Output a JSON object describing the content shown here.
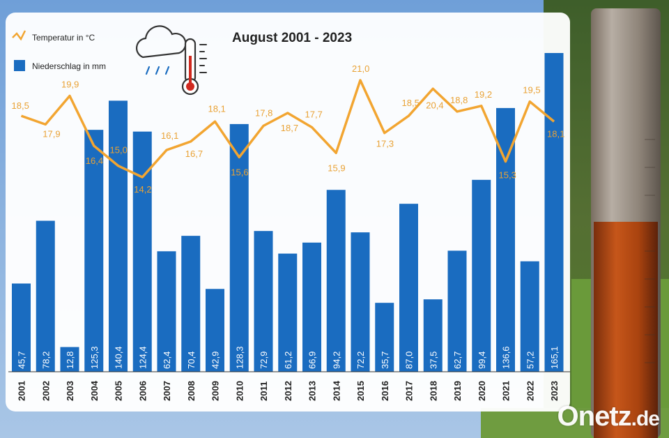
{
  "brand": {
    "watermark_main": "Onetz",
    "watermark_tld": ".de"
  },
  "colors": {
    "bar": "#1a6cc0",
    "line": "#f2a531",
    "temp_label": "#e9a235",
    "bar_label": "#ffffff",
    "panel": "#ffffff"
  },
  "icons": [
    "cloud-rain-icon",
    "thermometer-icon"
  ],
  "chart_data": {
    "type": "bar+line",
    "title": "August 2001 - 2023",
    "categories": [
      "2001",
      "2002",
      "2003",
      "2004",
      "2005",
      "2006",
      "2007",
      "2008",
      "2009",
      "2010",
      "2011",
      "2012",
      "2013",
      "2014",
      "2015",
      "2016",
      "2017",
      "2018",
      "2019",
      "2020",
      "2021",
      "2022",
      "2023"
    ],
    "series": [
      {
        "name": "Niederschlag in mm",
        "type": "bar",
        "values": [
          45.7,
          78.2,
          12.8,
          125.3,
          140.4,
          124.4,
          62.4,
          70.4,
          42.9,
          128.3,
          72.9,
          61.2,
          66.9,
          94.2,
          72.2,
          35.7,
          87.0,
          37.5,
          62.7,
          99.4,
          136.6,
          57.2,
          165.1
        ],
        "labels": [
          "45,7",
          "78,2",
          "12,8",
          "125,3",
          "140,4",
          "124,4",
          "62,4",
          "70,4",
          "42,9",
          "128,3",
          "72,9",
          "61,2",
          "66,9",
          "94,2",
          "72,2",
          "35,7",
          "87,0",
          "37,5",
          "62,7",
          "99,4",
          "136,6",
          "57,2",
          "165,1"
        ]
      },
      {
        "name": "Temperatur in °C",
        "type": "line",
        "values": [
          18.5,
          17.9,
          19.9,
          16.4,
          15.0,
          14.2,
          16.1,
          16.7,
          18.1,
          15.6,
          17.8,
          18.7,
          17.7,
          15.9,
          21.0,
          17.3,
          18.5,
          20.4,
          18.8,
          19.2,
          15.3,
          19.5,
          18.1
        ],
        "labels": [
          "18,5",
          "17,9",
          "19,9",
          "16,4",
          "15,0",
          "14,2",
          "16,1",
          "16,7",
          "18,1",
          "15,6",
          "17,8",
          "18,7",
          "17,7",
          "15,9",
          "21,0",
          "17,3",
          "18,5",
          "20,4",
          "18,8",
          "19,2",
          "15,3",
          "19,5",
          "18,1"
        ]
      }
    ],
    "legend": {
      "placement": "top-left"
    }
  }
}
